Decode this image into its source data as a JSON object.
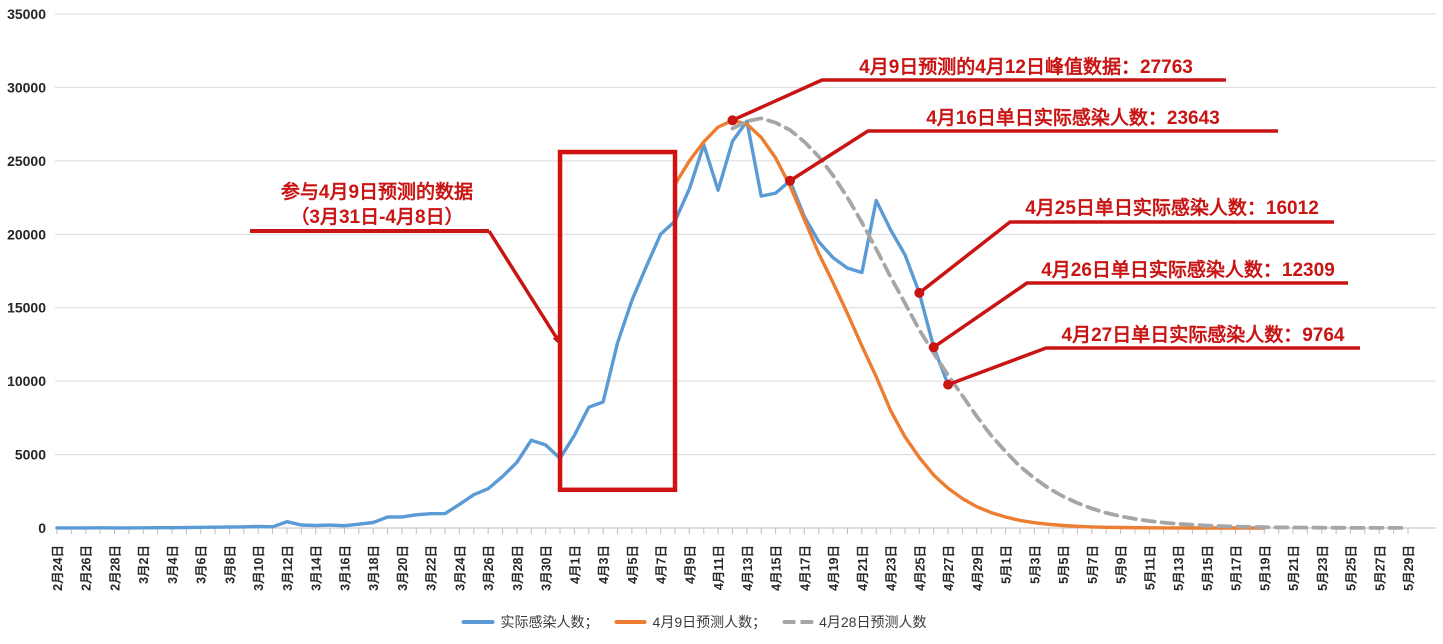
{
  "colors": {
    "actual": "#5B9BD5",
    "forecast_apr9": "#ED7D31",
    "forecast_apr28": "#A6A6A6",
    "annotation_red": "#C91414",
    "highlight_red": "#D11212",
    "grid": "#D9D9D9",
    "axis": "#BFBFBF",
    "label_text": "#262626"
  },
  "legend": {
    "items": [
      {
        "label": "实际感染人数；",
        "series": "actual",
        "style": "solid"
      },
      {
        "label": "4月9日预测人数；",
        "series": "forecast_apr9",
        "style": "solid"
      },
      {
        "label": "4月28日预测人数",
        "series": "forecast_apr28",
        "style": "dashed"
      }
    ]
  },
  "chart_data": {
    "type": "line",
    "title": "",
    "xlabel": "",
    "ylabel": "",
    "ylim": [
      0,
      35000
    ],
    "y_ticks": [
      0,
      5000,
      10000,
      15000,
      20000,
      25000,
      30000,
      35000
    ],
    "grid": "horizontal",
    "legend_position": "bottom",
    "x_unit": "day",
    "x_start": "2月24日",
    "x_end": "5月29日",
    "num_points": 95,
    "x_tick_labels": [
      "2月24日",
      "2月26日",
      "2月28日",
      "3月2日",
      "3月4日",
      "3月6日",
      "3月8日",
      "3月10日",
      "3月12日",
      "3月14日",
      "3月16日",
      "3月18日",
      "3月20日",
      "3月22日",
      "3月24日",
      "3月26日",
      "3月28日",
      "3月30日",
      "4月1日",
      "4月3日",
      "4月5日",
      "4月7日",
      "4月9日",
      "4月11日",
      "4月13日",
      "4月15日",
      "4月17日",
      "4月19日",
      "4月21日",
      "4月23日",
      "4月25日",
      "4月27日",
      "4月29日",
      "5月1日",
      "5月3日",
      "5月5日",
      "5月7日",
      "5月9日",
      "5月11日",
      "5月13日",
      "5月15日",
      "5月17日",
      "5月19日",
      "5月21日",
      "5月23日",
      "5月25日",
      "5月27日",
      "5月29日"
    ],
    "x_label_every_n_days": 2,
    "series": [
      {
        "name": "实际感染人数",
        "color": "#5B9BD5",
        "style": "solid",
        "start_day": 0,
        "start_date": "2月24日",
        "end_date": "4月27日",
        "values": [
          4,
          6,
          9,
          13,
          10,
          7,
          14,
          21,
          20,
          28,
          47,
          56,
          65,
          76,
          110,
          83,
          432,
          202,
          169,
          197,
          158,
          260,
          374,
          749,
          758,
          896,
          977,
          983,
          1609,
          2269,
          2678,
          3500,
          4477,
          5982,
          5653,
          4741,
          6311,
          8226,
          8581,
          12600,
          15500,
          17800,
          20000,
          20900,
          23100,
          26100,
          23000,
          26330,
          27700,
          22600,
          22800,
          23643,
          21200,
          19500,
          18400,
          17700,
          17400,
          22300,
          20300,
          18600,
          16012,
          12309,
          9764
        ]
      },
      {
        "name": "4月9日预测人数",
        "color": "#ED7D31",
        "style": "solid",
        "start_day": 43,
        "start_date": "4月8日",
        "end_date": "5月19日",
        "values": [
          23400,
          25000,
          26300,
          27300,
          27763,
          27500,
          26600,
          25200,
          23300,
          21000,
          18700,
          16700,
          14600,
          12400,
          10300,
          8000,
          6200,
          4800,
          3600,
          2700,
          2000,
          1450,
          1050,
          750,
          520,
          360,
          250,
          170,
          115,
          75,
          50,
          32,
          21,
          13,
          8,
          5,
          3,
          2,
          1,
          1,
          1,
          0
        ]
      },
      {
        "name": "4月28日预测人数",
        "color": "#A6A6A6",
        "style": "dashed",
        "start_day": 47,
        "start_date": "4月12日",
        "end_date": "5月29日",
        "values": [
          27200,
          27700,
          27900,
          27600,
          27100,
          26300,
          25300,
          24000,
          22500,
          20800,
          19000,
          17100,
          15300,
          13500,
          11900,
          10400,
          9000,
          7600,
          6300,
          5200,
          4200,
          3400,
          2700,
          2150,
          1700,
          1330,
          1030,
          800,
          620,
          480,
          370,
          280,
          215,
          165,
          125,
          95,
          72,
          55,
          42,
          32,
          24,
          18,
          14,
          11,
          8,
          6,
          5,
          4
        ]
      }
    ],
    "highlight_box": {
      "label_line1": "参与4月9日预测的数据",
      "label_line2": "（3月31日-4月8日）",
      "start_day": 35,
      "end_day": 43,
      "start_label": "3月31日",
      "end_label": "4月8日",
      "y_range": [
        2600,
        25600
      ]
    },
    "annotations": [
      {
        "text": "4月9日预测的4月12日峰值数据：27763",
        "series": "4月9日预测人数",
        "date": "4月12日",
        "day": 47,
        "value": 27763
      },
      {
        "text": "4月16日单日实际感染人数：23643",
        "series": "实际感染人数",
        "date": "4月16日",
        "day": 51,
        "value": 23643
      },
      {
        "text": "4月25日单日实际感染人数：16012",
        "series": "实际感染人数",
        "date": "4月25日",
        "day": 60,
        "value": 16012
      },
      {
        "text": "4月26日单日实际感染人数：12309",
        "series": "实际感染人数",
        "date": "4月26日",
        "day": 61,
        "value": 12309
      },
      {
        "text": "4月27日单日实际感染人数：9764",
        "series": "实际感染人数",
        "date": "4月27日",
        "day": 62,
        "value": 9764
      }
    ]
  }
}
